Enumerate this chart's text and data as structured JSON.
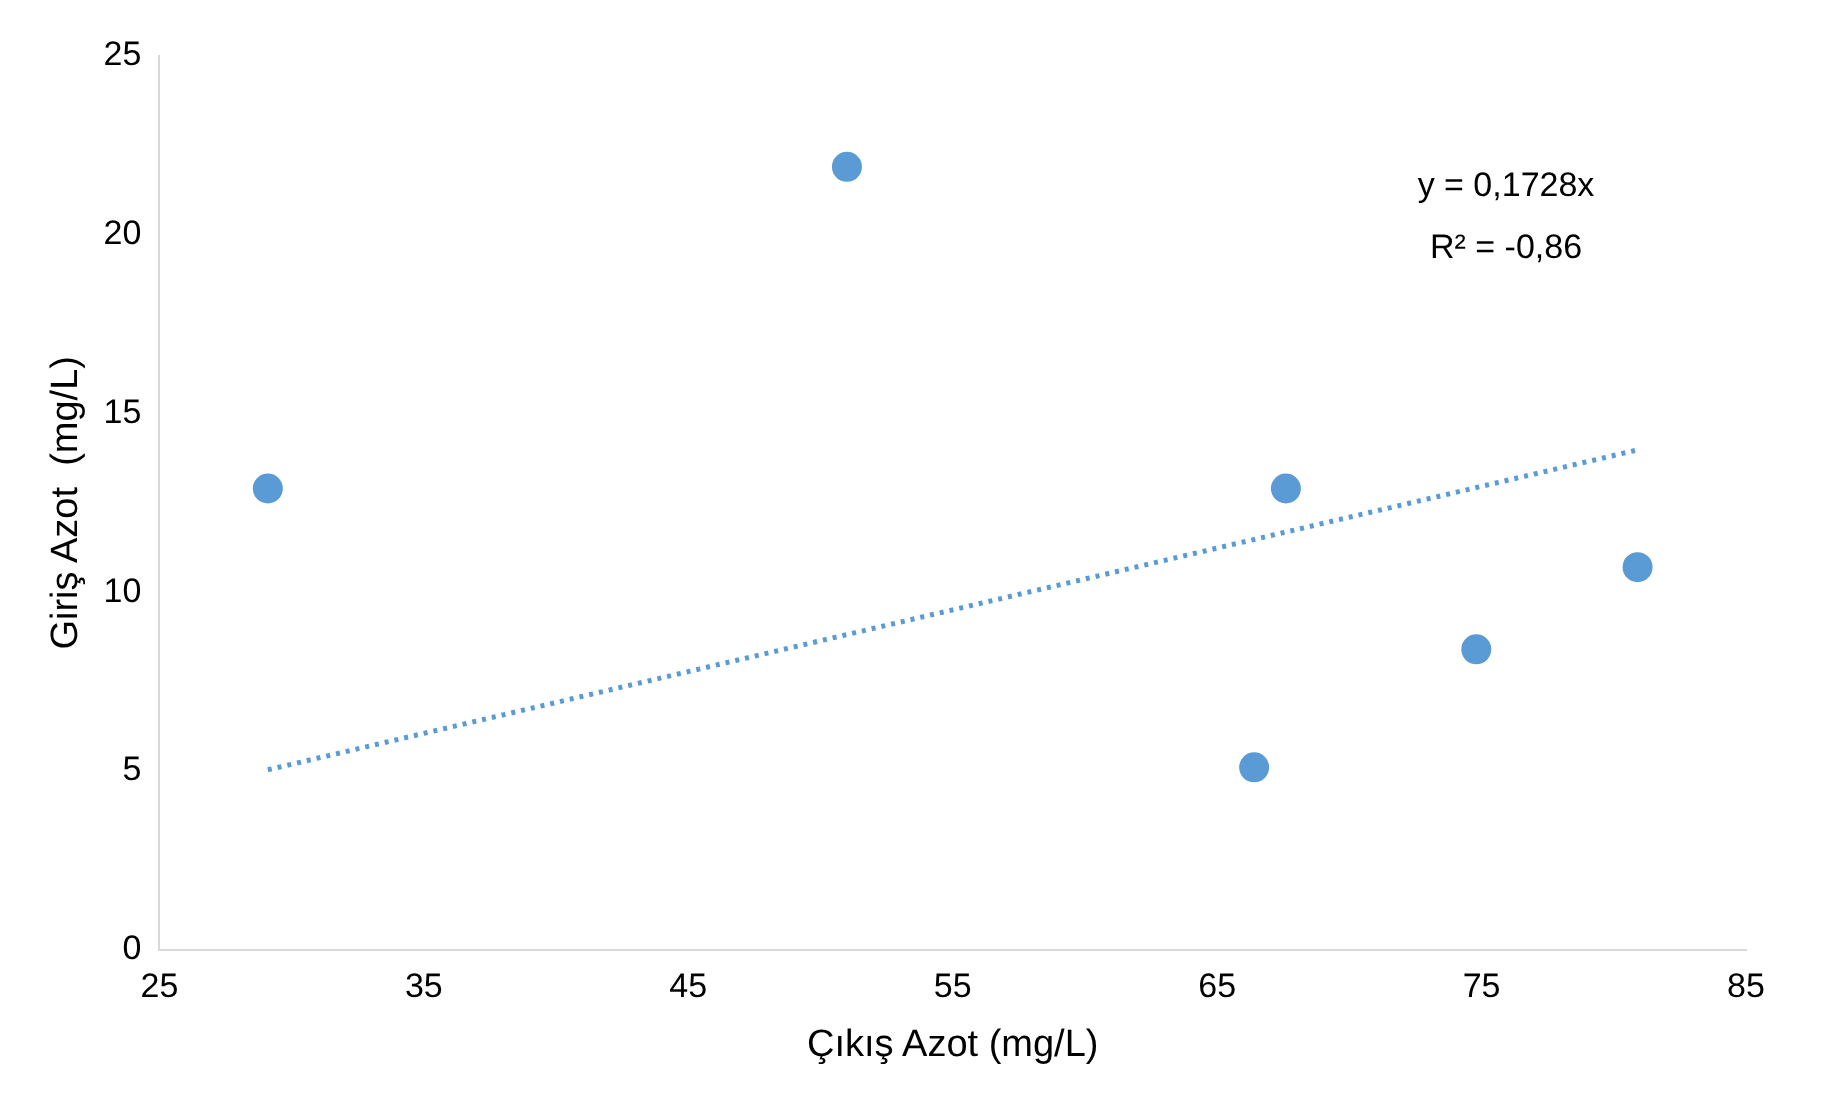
{
  "chart_data": {
    "type": "scatter",
    "xlabel": "Çıkış Azot (mg/L)",
    "ylabel": "Giriş Azot  (mg/L)",
    "annotations": [
      "y = 0,1728x",
      "R² = -0,86"
    ],
    "series": [
      {
        "type": "scatter",
        "marker": "circle",
        "color": "#5b9bd5",
        "x": [
          29.1,
          51.0,
          66.4,
          67.6,
          74.8,
          80.9
        ],
        "values": [
          12.9,
          21.9,
          5.1,
          12.9,
          8.4,
          10.7
        ]
      },
      {
        "type": "line",
        "color": "#5b9bd5",
        "line_style": "dotted",
        "x": [
          29.1,
          80.9
        ],
        "values": [
          5.03,
          13.98
        ]
      }
    ],
    "xlim": [
      25,
      85
    ],
    "xticks": [
      25,
      35,
      45,
      55,
      65,
      75,
      85
    ],
    "ylim": [
      0,
      25
    ],
    "yticks": [
      0,
      5,
      10,
      15,
      20,
      25
    ],
    "grid": false,
    "legend": false
  }
}
